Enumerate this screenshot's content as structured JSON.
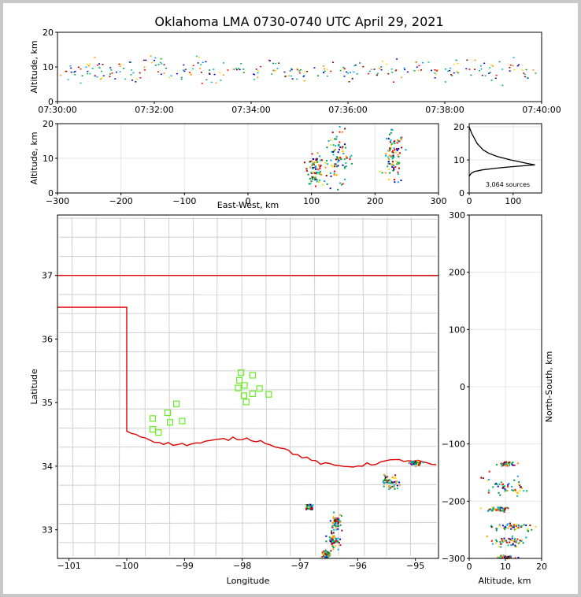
{
  "title": "Oklahoma LMA 0730-0740 UTC April 29, 2021",
  "chart_data": [
    {
      "type": "scatter",
      "name_key": "time_altitude",
      "xlabel": "",
      "ylabel": "Altitude, km",
      "x_ticks": [
        "07:30:00",
        "07:32:00",
        "07:34:00",
        "07:36:00",
        "07:38:00",
        "07:40:00"
      ],
      "y_ticks": [
        "0",
        "10",
        "20"
      ],
      "xlim": [
        "07:30:00",
        "07:40:00"
      ],
      "ylim": [
        0,
        20
      ],
      "grid": false,
      "points_min": [
        [
          0.3,
          8.5
        ],
        [
          0.5,
          9.2
        ],
        [
          0.8,
          10.1
        ],
        [
          1.0,
          7.8
        ],
        [
          1.3,
          9.5
        ],
        [
          1.6,
          8.0
        ],
        [
          1.9,
          11.0
        ],
        [
          2.2,
          9.0
        ],
        [
          2.6,
          8.4
        ],
        [
          3.0,
          10.2
        ],
        [
          3.2,
          7.5
        ],
        [
          3.6,
          9.8
        ],
        [
          4.0,
          8.2
        ],
        [
          4.4,
          10.5
        ],
        [
          4.8,
          9.1
        ],
        [
          5.1,
          7.9
        ],
        [
          5.5,
          9.4
        ],
        [
          5.9,
          8.8
        ],
        [
          6.2,
          10.0
        ],
        [
          6.6,
          8.6
        ],
        [
          7.0,
          9.3
        ],
        [
          7.4,
          10.4
        ],
        [
          7.8,
          8.1
        ],
        [
          8.2,
          9.7
        ],
        [
          8.6,
          10.8
        ],
        [
          9.0,
          8.3
        ],
        [
          9.3,
          9.6
        ],
        [
          9.7,
          8.7
        ]
      ]
    },
    {
      "type": "scatter",
      "name_key": "eastwest_altitude",
      "xlabel": "East-West, km",
      "ylabel": "Altitude, km",
      "x_ticks": [
        "−300",
        "−200",
        "−100",
        "0",
        "100",
        "200",
        "300"
      ],
      "y_ticks": [
        "0",
        "10",
        "20"
      ],
      "xlim": [
        -300,
        300
      ],
      "ylim": [
        0,
        20
      ],
      "grid": true,
      "clusters": [
        {
          "x": 140,
          "y": 10,
          "sx": 12,
          "sy": 4
        },
        {
          "x": 228,
          "y": 10,
          "sx": 8,
          "sy": 4
        },
        {
          "x": 105,
          "y": 7,
          "sx": 6,
          "sy": 2
        }
      ]
    },
    {
      "type": "line",
      "name_key": "altitude_histogram",
      "annotation": "3,064 sources",
      "x_ticks": [
        "0",
        "100"
      ],
      "y_ticks": [
        "0",
        "10",
        "20"
      ],
      "xlim": [
        0,
        165
      ],
      "ylim": [
        0,
        21
      ],
      "profile": [
        [
          0,
          20
        ],
        [
          3,
          19
        ],
        [
          6,
          18
        ],
        [
          10,
          17
        ],
        [
          14,
          16
        ],
        [
          18,
          15
        ],
        [
          25,
          14
        ],
        [
          32,
          13
        ],
        [
          45,
          12
        ],
        [
          65,
          11
        ],
        [
          95,
          10
        ],
        [
          130,
          9
        ],
        [
          150,
          8.5
        ],
        [
          100,
          8
        ],
        [
          60,
          7.5
        ],
        [
          30,
          7
        ],
        [
          12,
          6.5
        ],
        [
          5,
          6
        ],
        [
          2,
          5.5
        ],
        [
          0,
          5
        ]
      ]
    },
    {
      "type": "scatter",
      "name_key": "plan_view",
      "xlabel": "Longitude",
      "ylabel": "Latitude",
      "x_ticks": [
        "−101",
        "−100",
        "−99",
        "−98",
        "−97",
        "−96",
        "−95"
      ],
      "y_ticks": [
        "33",
        "34",
        "35",
        "36",
        "37"
      ],
      "xlim": [
        -101.2,
        -94.6
      ],
      "ylim": [
        32.55,
        37.95
      ],
      "stations": [
        [
          -98.02,
          35.47
        ],
        [
          -97.82,
          35.43
        ],
        [
          -98.05,
          35.35
        ],
        [
          -97.96,
          35.27
        ],
        [
          -98.07,
          35.23
        ],
        [
          -97.7,
          35.22
        ],
        [
          -97.97,
          35.11
        ],
        [
          -97.82,
          35.14
        ],
        [
          -97.54,
          35.13
        ],
        [
          -97.93,
          35.01
        ],
        [
          -99.14,
          34.98
        ],
        [
          -99.29,
          34.84
        ],
        [
          -99.55,
          34.75
        ],
        [
          -99.25,
          34.69
        ],
        [
          -99.04,
          34.71
        ],
        [
          -99.55,
          34.58
        ],
        [
          -99.45,
          34.53
        ]
      ],
      "clusters": [
        {
          "lon": -95.45,
          "lat": 33.75,
          "sx": 0.08,
          "sy": 0.05
        },
        {
          "lon": -96.38,
          "lat": 33.12,
          "sx": 0.05,
          "sy": 0.06
        },
        {
          "lon": -96.42,
          "lat": 32.85,
          "sx": 0.05,
          "sy": 0.05
        },
        {
          "lon": -96.85,
          "lat": 33.37,
          "sx": 0.04,
          "sy": 0.02
        },
        {
          "lon": -95.0,
          "lat": 34.06,
          "sx": 0.05,
          "sy": 0.015
        },
        {
          "lon": -96.55,
          "lat": 32.62,
          "sx": 0.03,
          "sy": 0.03
        }
      ]
    },
    {
      "type": "scatter",
      "name_key": "altitude_northsouth",
      "xlabel": "Altitude, km",
      "ylabel": "North-South, km",
      "x_ticks": [
        "0",
        "10",
        "20"
      ],
      "y_ticks": [
        "300",
        "200",
        "100",
        "0",
        "−100",
        "−200",
        "−300"
      ],
      "xlim": [
        0,
        20
      ],
      "ylim": [
        -300,
        300
      ],
      "grid": true,
      "clusters": [
        {
          "x": 10,
          "y": -175,
          "sx": 3,
          "sy": 8
        },
        {
          "x": 11,
          "y": -243,
          "sx": 3,
          "sy": 4
        },
        {
          "x": 11,
          "y": -270,
          "sx": 3,
          "sy": 4
        },
        {
          "x": 8,
          "y": -213,
          "sx": 1.5,
          "sy": 2
        },
        {
          "x": 10,
          "y": -134,
          "sx": 1,
          "sy": 2
        },
        {
          "x": 10,
          "y": -297,
          "sx": 1,
          "sy": 2
        }
      ]
    }
  ]
}
